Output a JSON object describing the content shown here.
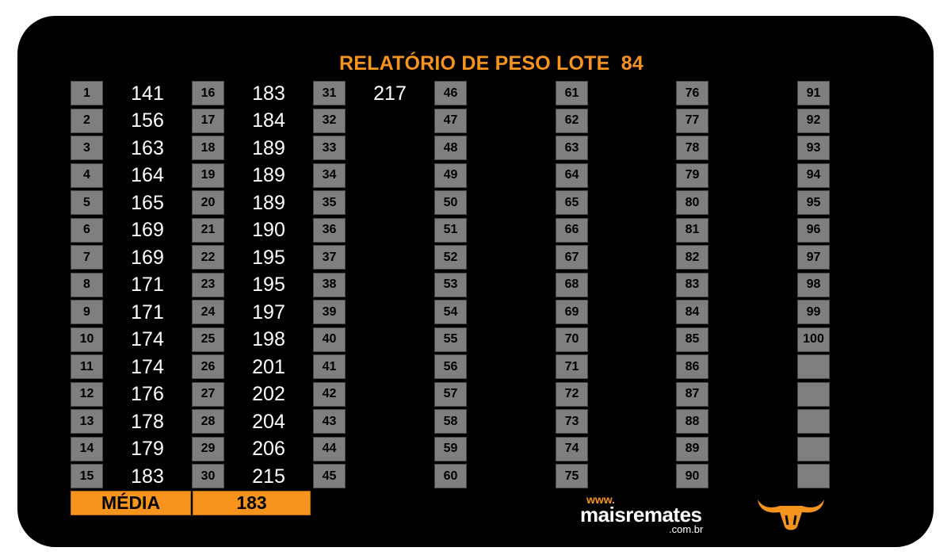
{
  "title": "RELATÓRIO DE PESO LOTE  84",
  "rows": [
    {
      "n": "1",
      "v": "141"
    },
    {
      "n": "2",
      "v": "156"
    },
    {
      "n": "3",
      "v": "163"
    },
    {
      "n": "4",
      "v": "164"
    },
    {
      "n": "5",
      "v": "165"
    },
    {
      "n": "6",
      "v": "169"
    },
    {
      "n": "7",
      "v": "169"
    },
    {
      "n": "8",
      "v": "171"
    },
    {
      "n": "9",
      "v": "171"
    },
    {
      "n": "10",
      "v": "174"
    },
    {
      "n": "11",
      "v": "174"
    },
    {
      "n": "12",
      "v": "176"
    },
    {
      "n": "13",
      "v": "178"
    },
    {
      "n": "14",
      "v": "179"
    },
    {
      "n": "15",
      "v": "183"
    },
    {
      "n": "16",
      "v": "183"
    },
    {
      "n": "17",
      "v": "184"
    },
    {
      "n": "18",
      "v": "189"
    },
    {
      "n": "19",
      "v": "189"
    },
    {
      "n": "20",
      "v": "189"
    },
    {
      "n": "21",
      "v": "190"
    },
    {
      "n": "22",
      "v": "195"
    },
    {
      "n": "23",
      "v": "195"
    },
    {
      "n": "24",
      "v": "197"
    },
    {
      "n": "25",
      "v": "198"
    },
    {
      "n": "26",
      "v": "201"
    },
    {
      "n": "27",
      "v": "202"
    },
    {
      "n": "28",
      "v": "204"
    },
    {
      "n": "29",
      "v": "206"
    },
    {
      "n": "30",
      "v": "215"
    },
    {
      "n": "31",
      "v": "217"
    },
    {
      "n": "32",
      "v": ""
    },
    {
      "n": "33",
      "v": ""
    },
    {
      "n": "34",
      "v": ""
    },
    {
      "n": "35",
      "v": ""
    },
    {
      "n": "36",
      "v": ""
    },
    {
      "n": "37",
      "v": ""
    },
    {
      "n": "38",
      "v": ""
    },
    {
      "n": "39",
      "v": ""
    },
    {
      "n": "40",
      "v": ""
    },
    {
      "n": "41",
      "v": ""
    },
    {
      "n": "42",
      "v": ""
    },
    {
      "n": "43",
      "v": ""
    },
    {
      "n": "44",
      "v": ""
    },
    {
      "n": "45",
      "v": ""
    },
    {
      "n": "46",
      "v": ""
    },
    {
      "n": "47",
      "v": ""
    },
    {
      "n": "48",
      "v": ""
    },
    {
      "n": "49",
      "v": ""
    },
    {
      "n": "50",
      "v": ""
    },
    {
      "n": "51",
      "v": ""
    },
    {
      "n": "52",
      "v": ""
    },
    {
      "n": "53",
      "v": ""
    },
    {
      "n": "54",
      "v": ""
    },
    {
      "n": "55",
      "v": ""
    },
    {
      "n": "56",
      "v": ""
    },
    {
      "n": "57",
      "v": ""
    },
    {
      "n": "58",
      "v": ""
    },
    {
      "n": "59",
      "v": ""
    },
    {
      "n": "60",
      "v": ""
    },
    {
      "n": "61",
      "v": ""
    },
    {
      "n": "62",
      "v": ""
    },
    {
      "n": "63",
      "v": ""
    },
    {
      "n": "64",
      "v": ""
    },
    {
      "n": "65",
      "v": ""
    },
    {
      "n": "66",
      "v": ""
    },
    {
      "n": "67",
      "v": ""
    },
    {
      "n": "68",
      "v": ""
    },
    {
      "n": "69",
      "v": ""
    },
    {
      "n": "70",
      "v": ""
    },
    {
      "n": "71",
      "v": ""
    },
    {
      "n": "72",
      "v": ""
    },
    {
      "n": "73",
      "v": ""
    },
    {
      "n": "74",
      "v": ""
    },
    {
      "n": "75",
      "v": ""
    },
    {
      "n": "76",
      "v": ""
    },
    {
      "n": "77",
      "v": ""
    },
    {
      "n": "78",
      "v": ""
    },
    {
      "n": "79",
      "v": ""
    },
    {
      "n": "80",
      "v": ""
    },
    {
      "n": "81",
      "v": ""
    },
    {
      "n": "82",
      "v": ""
    },
    {
      "n": "83",
      "v": ""
    },
    {
      "n": "84",
      "v": ""
    },
    {
      "n": "85",
      "v": ""
    },
    {
      "n": "86",
      "v": ""
    },
    {
      "n": "87",
      "v": ""
    },
    {
      "n": "88",
      "v": ""
    },
    {
      "n": "89",
      "v": ""
    },
    {
      "n": "90",
      "v": ""
    },
    {
      "n": "91",
      "v": ""
    },
    {
      "n": "92",
      "v": ""
    },
    {
      "n": "93",
      "v": ""
    },
    {
      "n": "94",
      "v": ""
    },
    {
      "n": "95",
      "v": ""
    },
    {
      "n": "96",
      "v": ""
    },
    {
      "n": "97",
      "v": ""
    },
    {
      "n": "98",
      "v": ""
    },
    {
      "n": "99",
      "v": ""
    },
    {
      "n": "100",
      "v": ""
    },
    {
      "n": "",
      "v": ""
    },
    {
      "n": "",
      "v": ""
    },
    {
      "n": "",
      "v": ""
    },
    {
      "n": "",
      "v": ""
    },
    {
      "n": "",
      "v": ""
    }
  ],
  "footer": {
    "label": "MÉDIA",
    "value": "183"
  },
  "logo": {
    "www": "www.",
    "name": "maisremates",
    "suffix": ".com.br"
  },
  "icons": {
    "brand": "bull-head-icon"
  },
  "colors": {
    "accent": "#f7941d",
    "background": "#000000",
    "cell": "#7f7f7f"
  }
}
